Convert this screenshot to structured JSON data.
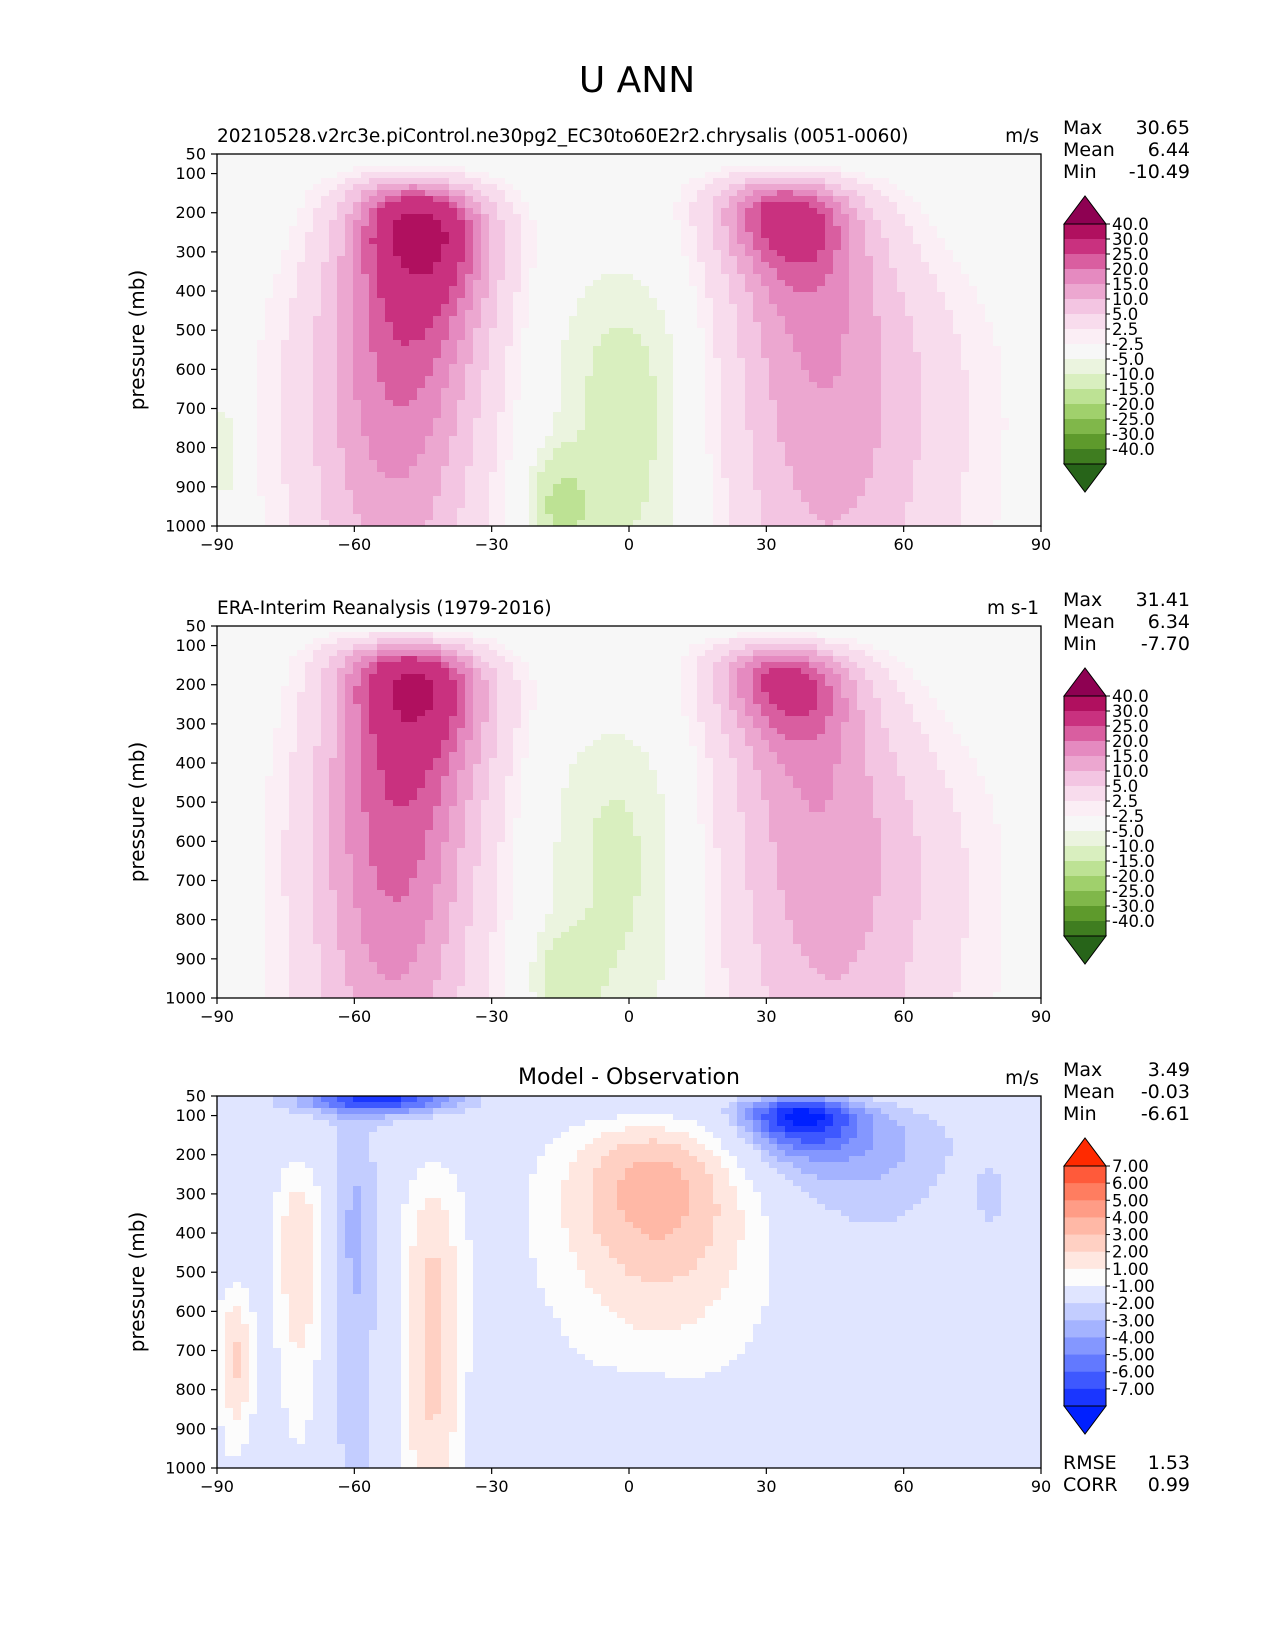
{
  "figure": {
    "title": "U ANN"
  },
  "chart_data": [
    {
      "type": "heatmap",
      "title": "20210528.v2rc3e.piControl.ne30pg2_EC30to60E2r2.chrysalis (0051-0060)",
      "units": "m/s",
      "ylabel": "pressure (mb)",
      "x_ticks": [
        -90,
        -60,
        -30,
        0,
        30,
        60,
        90
      ],
      "y_ticks": [
        50,
        100,
        200,
        300,
        400,
        500,
        600,
        700,
        800,
        900,
        1000
      ],
      "xlim": [
        -90,
        90
      ],
      "ylim": [
        1000,
        50
      ],
      "stats": [
        {
          "label": "Max",
          "value": "30.65"
        },
        {
          "label": "Mean",
          "value": "6.44"
        },
        {
          "label": "Min",
          "value": "-10.49"
        }
      ],
      "colorbar": {
        "levels": [
          "40.0",
          "30.0",
          "25.0",
          "20.0",
          "15.0",
          "10.0",
          "5.0",
          "2.5",
          "-2.5",
          "-5.0",
          "-10.0",
          "-15.0",
          "-20.0",
          "-25.0",
          "-30.0",
          "-40.0"
        ],
        "colors": [
          "#8e0152",
          "#b0105f",
          "#c9317f",
          "#d95ea0",
          "#e58ac0",
          "#eca7d0",
          "#f3c5e2",
          "#f8dced",
          "#fbeef5",
          "#f7f7f7",
          "#ebf4df",
          "#d9efbf",
          "#bde294",
          "#a0d06c",
          "#80b74a",
          "#5e9a2c",
          "#3f7d20",
          "#276419"
        ]
      },
      "jets": [
        {
          "lat": -45,
          "p": 230,
          "peak": 30.6
        },
        {
          "lat": 35,
          "p": 210,
          "peak": 27.5
        }
      ]
    },
    {
      "type": "heatmap",
      "title": "ERA-Interim Reanalysis (1979-2016)",
      "units": "m s-1",
      "ylabel": "pressure (mb)",
      "x_ticks": [
        -90,
        -60,
        -30,
        0,
        30,
        60,
        90
      ],
      "y_ticks": [
        50,
        100,
        200,
        300,
        400,
        500,
        600,
        700,
        800,
        900,
        1000
      ],
      "xlim": [
        -90,
        90
      ],
      "ylim": [
        1000,
        50
      ],
      "stats": [
        {
          "label": "Max",
          "value": "31.41"
        },
        {
          "label": "Mean",
          "value": "6.34"
        },
        {
          "label": "Min",
          "value": "-7.70"
        }
      ],
      "colorbar": {
        "levels": [
          "40.0",
          "30.0",
          "25.0",
          "20.0",
          "15.0",
          "10.0",
          "5.0",
          "2.5",
          "-2.5",
          "-5.0",
          "-10.0",
          "-15.0",
          "-20.0",
          "-25.0",
          "-30.0",
          "-40.0"
        ],
        "colors": [
          "#8e0152",
          "#b0105f",
          "#c9317f",
          "#d95ea0",
          "#e58ac0",
          "#eca7d0",
          "#f3c5e2",
          "#f8dced",
          "#fbeef5",
          "#f7f7f7",
          "#ebf4df",
          "#d9efbf",
          "#bde294",
          "#a0d06c",
          "#80b74a",
          "#5e9a2c",
          "#3f7d20",
          "#276419"
        ]
      },
      "jets": [
        {
          "lat": -45,
          "p": 190,
          "peak": 31.4
        },
        {
          "lat": 35,
          "p": 190,
          "peak": 27.0
        }
      ]
    },
    {
      "type": "heatmap",
      "title": "Model - Observation",
      "units": "m/s",
      "ylabel": "pressure (mb)",
      "x_ticks": [
        -90,
        -60,
        -30,
        0,
        30,
        60,
        90
      ],
      "y_ticks": [
        50,
        100,
        200,
        300,
        400,
        500,
        600,
        700,
        800,
        900,
        1000
      ],
      "xlim": [
        -90,
        90
      ],
      "ylim": [
        1000,
        50
      ],
      "stats": [
        {
          "label": "Max",
          "value": "3.49"
        },
        {
          "label": "Mean",
          "value": "-0.03"
        },
        {
          "label": "Min",
          "value": "-6.61"
        }
      ],
      "extra_stats": [
        {
          "label": "RMSE",
          "value": "1.53"
        },
        {
          "label": "CORR",
          "value": "0.99"
        }
      ],
      "colorbar": {
        "levels": [
          "7.00",
          "6.00",
          "5.00",
          "4.00",
          "3.00",
          "2.00",
          "1.00",
          "-1.00",
          "-2.00",
          "-3.00",
          "-4.00",
          "-5.00",
          "-6.00",
          "-7.00"
        ],
        "colors": [
          "#ff2a00",
          "#ff5a3a",
          "#ff7d60",
          "#ff9c86",
          "#ffb8a6",
          "#ffd0c3",
          "#ffe7e0",
          "#fcfcfc",
          "#e0e5ff",
          "#c3cdff",
          "#a4b3ff",
          "#8497ff",
          "#6279ff",
          "#3e58ff",
          "#1a36ff",
          "#0020ff"
        ]
      }
    }
  ]
}
